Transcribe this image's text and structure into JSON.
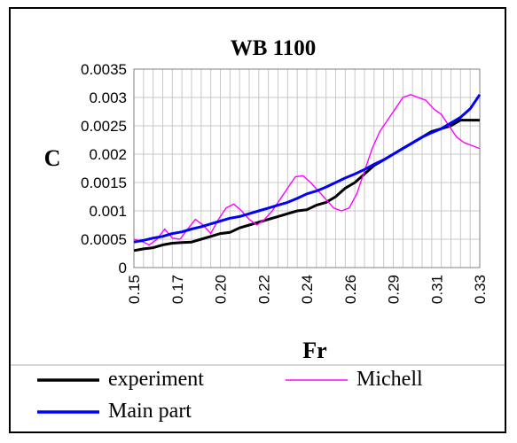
{
  "chart_data": {
    "type": "line",
    "title": "WB 1100",
    "xlabel": "Fr",
    "ylabel": "C",
    "xlim": [
      0.15,
      0.33
    ],
    "ylim": [
      0,
      0.0035
    ],
    "yticks": [
      "0",
      "0.0005",
      "0.001",
      "0.0015",
      "0.002",
      "0.0025",
      "0.003",
      "0.0035"
    ],
    "yticks_values": [
      0,
      0.0005,
      0.001,
      0.0015,
      0.002,
      0.0025,
      0.003,
      0.0035
    ],
    "xticks": [
      "0.15",
      "0.17",
      "0.20",
      "0.22",
      "0.24",
      "0.26",
      "0.29",
      "0.31",
      "0.33"
    ],
    "xticks_values": [
      0.15,
      0.1725,
      0.195,
      0.2175,
      0.24,
      0.2625,
      0.285,
      0.3075,
      0.33
    ],
    "grid": true,
    "legend_position": "bottom",
    "series": [
      {
        "name": "experiment",
        "color": "#000000",
        "x": [
          0.15,
          0.155,
          0.16,
          0.165,
          0.17,
          0.175,
          0.18,
          0.185,
          0.19,
          0.195,
          0.2,
          0.205,
          0.21,
          0.215,
          0.22,
          0.225,
          0.23,
          0.235,
          0.24,
          0.245,
          0.25,
          0.255,
          0.26,
          0.265,
          0.27,
          0.275,
          0.28,
          0.285,
          0.29,
          0.295,
          0.3,
          0.305,
          0.31,
          0.315,
          0.32,
          0.325,
          0.33
        ],
        "values": [
          0.0003,
          0.00033,
          0.00035,
          0.0004,
          0.00043,
          0.00044,
          0.00045,
          0.0005,
          0.00055,
          0.0006,
          0.00062,
          0.0007,
          0.00075,
          0.0008,
          0.00085,
          0.0009,
          0.00095,
          0.001,
          0.00102,
          0.0011,
          0.00115,
          0.00125,
          0.0014,
          0.0015,
          0.00165,
          0.0018,
          0.0019,
          0.002,
          0.0021,
          0.0022,
          0.0023,
          0.0024,
          0.00245,
          0.0025,
          0.0026,
          0.0026,
          0.0026
        ]
      },
      {
        "name": "Michell",
        "color": "#ff00ff",
        "x": [
          0.15,
          0.155,
          0.158,
          0.162,
          0.166,
          0.17,
          0.174,
          0.178,
          0.182,
          0.186,
          0.19,
          0.194,
          0.198,
          0.202,
          0.206,
          0.21,
          0.214,
          0.218,
          0.222,
          0.226,
          0.23,
          0.234,
          0.238,
          0.242,
          0.246,
          0.25,
          0.254,
          0.258,
          0.262,
          0.266,
          0.27,
          0.274,
          0.278,
          0.282,
          0.286,
          0.29,
          0.294,
          0.298,
          0.302,
          0.306,
          0.31,
          0.314,
          0.318,
          0.322,
          0.326,
          0.33
        ],
        "values": [
          0.0005,
          0.00045,
          0.0004,
          0.0005,
          0.00068,
          0.00052,
          0.0005,
          0.00068,
          0.00085,
          0.00075,
          0.0006,
          0.00085,
          0.00105,
          0.00112,
          0.001,
          0.00085,
          0.00075,
          0.00085,
          0.001,
          0.0012,
          0.0014,
          0.0016,
          0.00162,
          0.0015,
          0.00135,
          0.0012,
          0.00105,
          0.001,
          0.00105,
          0.0013,
          0.0017,
          0.0021,
          0.0024,
          0.0026,
          0.0028,
          0.003,
          0.00305,
          0.003,
          0.00295,
          0.0028,
          0.0027,
          0.0025,
          0.0023,
          0.0022,
          0.00215,
          0.0021
        ]
      },
      {
        "name": "Main part",
        "color": "#0000ff",
        "x": [
          0.15,
          0.155,
          0.16,
          0.165,
          0.17,
          0.175,
          0.18,
          0.185,
          0.19,
          0.195,
          0.2,
          0.205,
          0.21,
          0.215,
          0.22,
          0.225,
          0.23,
          0.235,
          0.24,
          0.245,
          0.25,
          0.255,
          0.26,
          0.265,
          0.27,
          0.275,
          0.28,
          0.285,
          0.29,
          0.295,
          0.3,
          0.305,
          0.31,
          0.315,
          0.32,
          0.325,
          0.33
        ],
        "values": [
          0.00045,
          0.00048,
          0.00052,
          0.00055,
          0.0006,
          0.00063,
          0.00068,
          0.00072,
          0.00077,
          0.00082,
          0.00087,
          0.0009,
          0.00095,
          0.001,
          0.00105,
          0.0011,
          0.00115,
          0.00122,
          0.0013,
          0.00135,
          0.00142,
          0.0015,
          0.00158,
          0.00165,
          0.00173,
          0.00182,
          0.0019,
          0.002,
          0.0021,
          0.0022,
          0.0023,
          0.00238,
          0.00245,
          0.00255,
          0.00265,
          0.0028,
          0.00305
        ]
      }
    ]
  }
}
